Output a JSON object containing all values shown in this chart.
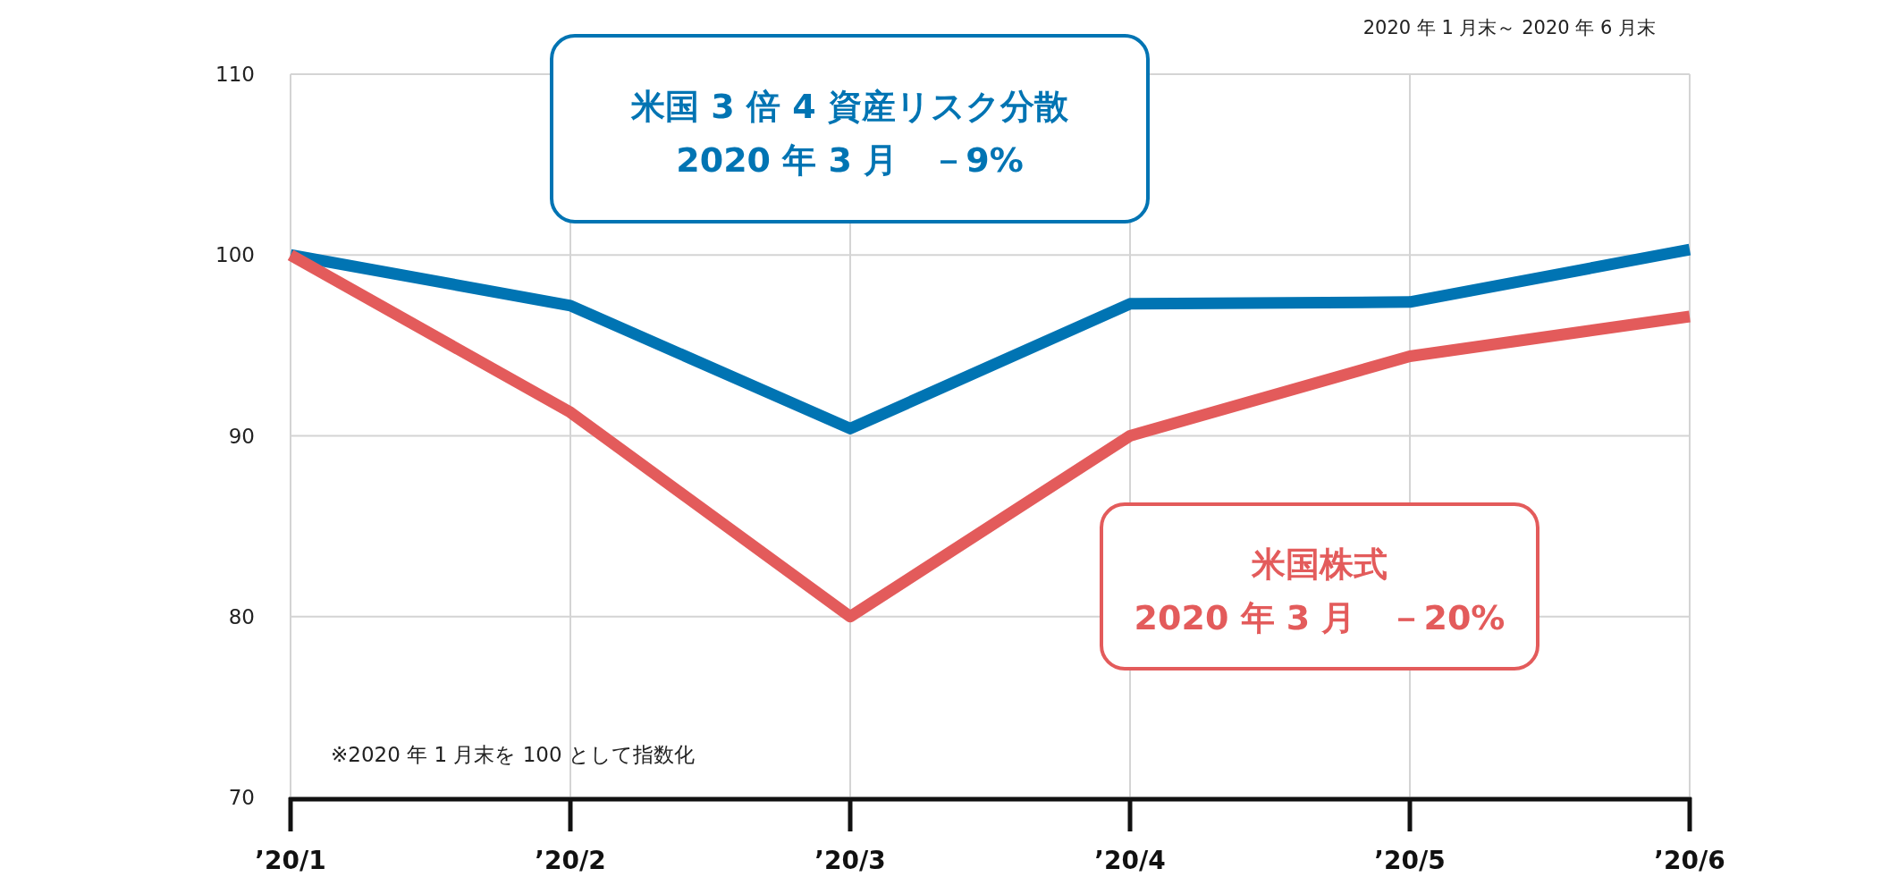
{
  "chart_data": {
    "type": "line",
    "subtitle": "2020 年 1 月末～ 2020 年 6 月末",
    "categories": [
      "’20/1",
      "’20/2",
      "’20/3",
      "’20/4",
      "’20/5",
      "’20/6"
    ],
    "series": [
      {
        "name": "米国 3 倍 4 資産リスク分散",
        "color": "#0074b3",
        "values": [
          100,
          97.2,
          90.4,
          97.3,
          97.4,
          100.3
        ]
      },
      {
        "name": "米国株式",
        "color": "#e35b5b",
        "values": [
          100,
          91.3,
          80,
          90,
          94.4,
          96.6
        ]
      }
    ],
    "annotations": [
      "2020 年 3 月　－9%",
      "2020 年 3 月　－20%",
      "※2020 年 1 月末を 100 として指数化"
    ],
    "ylim": [
      70,
      110
    ],
    "yticks": [
      70,
      80,
      90,
      100,
      110
    ],
    "grid": true,
    "marker": "none",
    "line_style": "solid"
  }
}
